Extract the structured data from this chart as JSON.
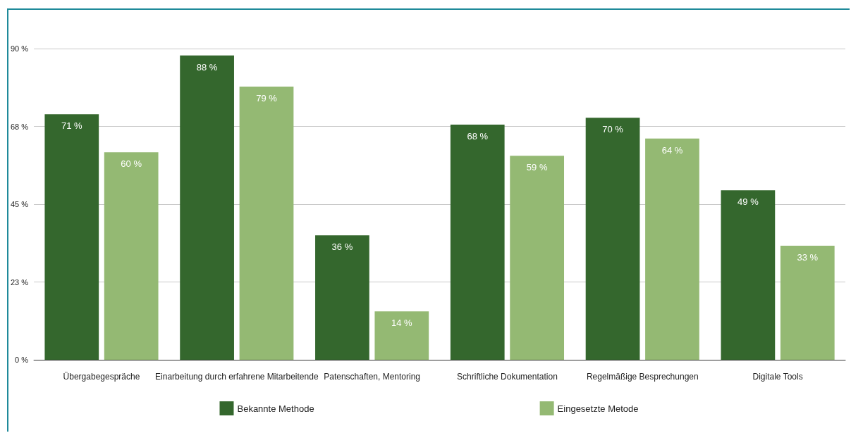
{
  "chart_data": {
    "type": "bar",
    "categories": [
      "Übergabegespräche",
      "Einarbeitung durch erfahrene Mitarbeitende",
      "Patenschaften, Mentoring",
      "Schriftliche Dokumentation",
      "Regelmäßige Besprechungen",
      "Digitale Tools"
    ],
    "series": [
      {
        "name": "Bekannte Methode",
        "color": "#34672d",
        "values": [
          71,
          88,
          36,
          68,
          70,
          49
        ],
        "value_labels": [
          "71 %",
          "88 %",
          "36 %",
          "68 %",
          "70 %",
          "49 %"
        ]
      },
      {
        "name": "Eingesetzte Metode",
        "color": "#94b973",
        "values": [
          60,
          79,
          14,
          59,
          64,
          33
        ],
        "value_labels": [
          "60 %",
          "79 %",
          "14 %",
          "59 %",
          "64 %",
          "33 %"
        ]
      }
    ],
    "ylim": [
      0,
      90
    ],
    "yticks": [
      {
        "value": 0,
        "label": "0 %"
      },
      {
        "value": 22.5,
        "label": "23 %"
      },
      {
        "value": 45,
        "label": "45 %"
      },
      {
        "value": 67.5,
        "label": "68 %"
      },
      {
        "value": 90,
        "label": "90 %"
      }
    ],
    "grid": "y",
    "legend": "bottom"
  }
}
